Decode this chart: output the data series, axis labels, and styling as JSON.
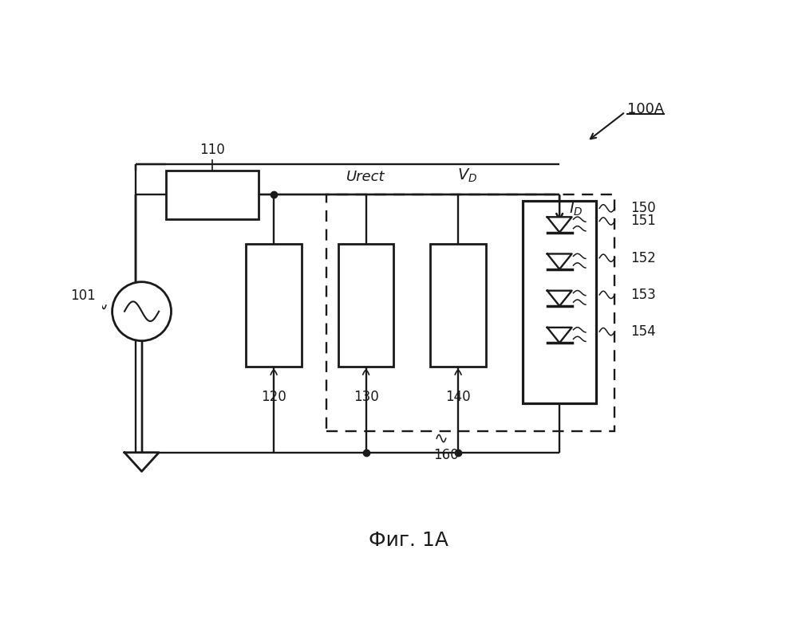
{
  "title": "Фиг. 1А",
  "label_100A": "100A",
  "label_110": "110",
  "label_101": "101",
  "label_120": "120",
  "label_130": "130",
  "label_140": "140",
  "label_150": "150",
  "label_151": "151",
  "label_152": "152",
  "label_153": "153",
  "label_154": "154",
  "label_160": "160",
  "label_Urect": "Urect",
  "label_VD": "V_D",
  "label_ID": "I_D",
  "bg_color": "#ffffff",
  "line_color": "#1a1a1a"
}
